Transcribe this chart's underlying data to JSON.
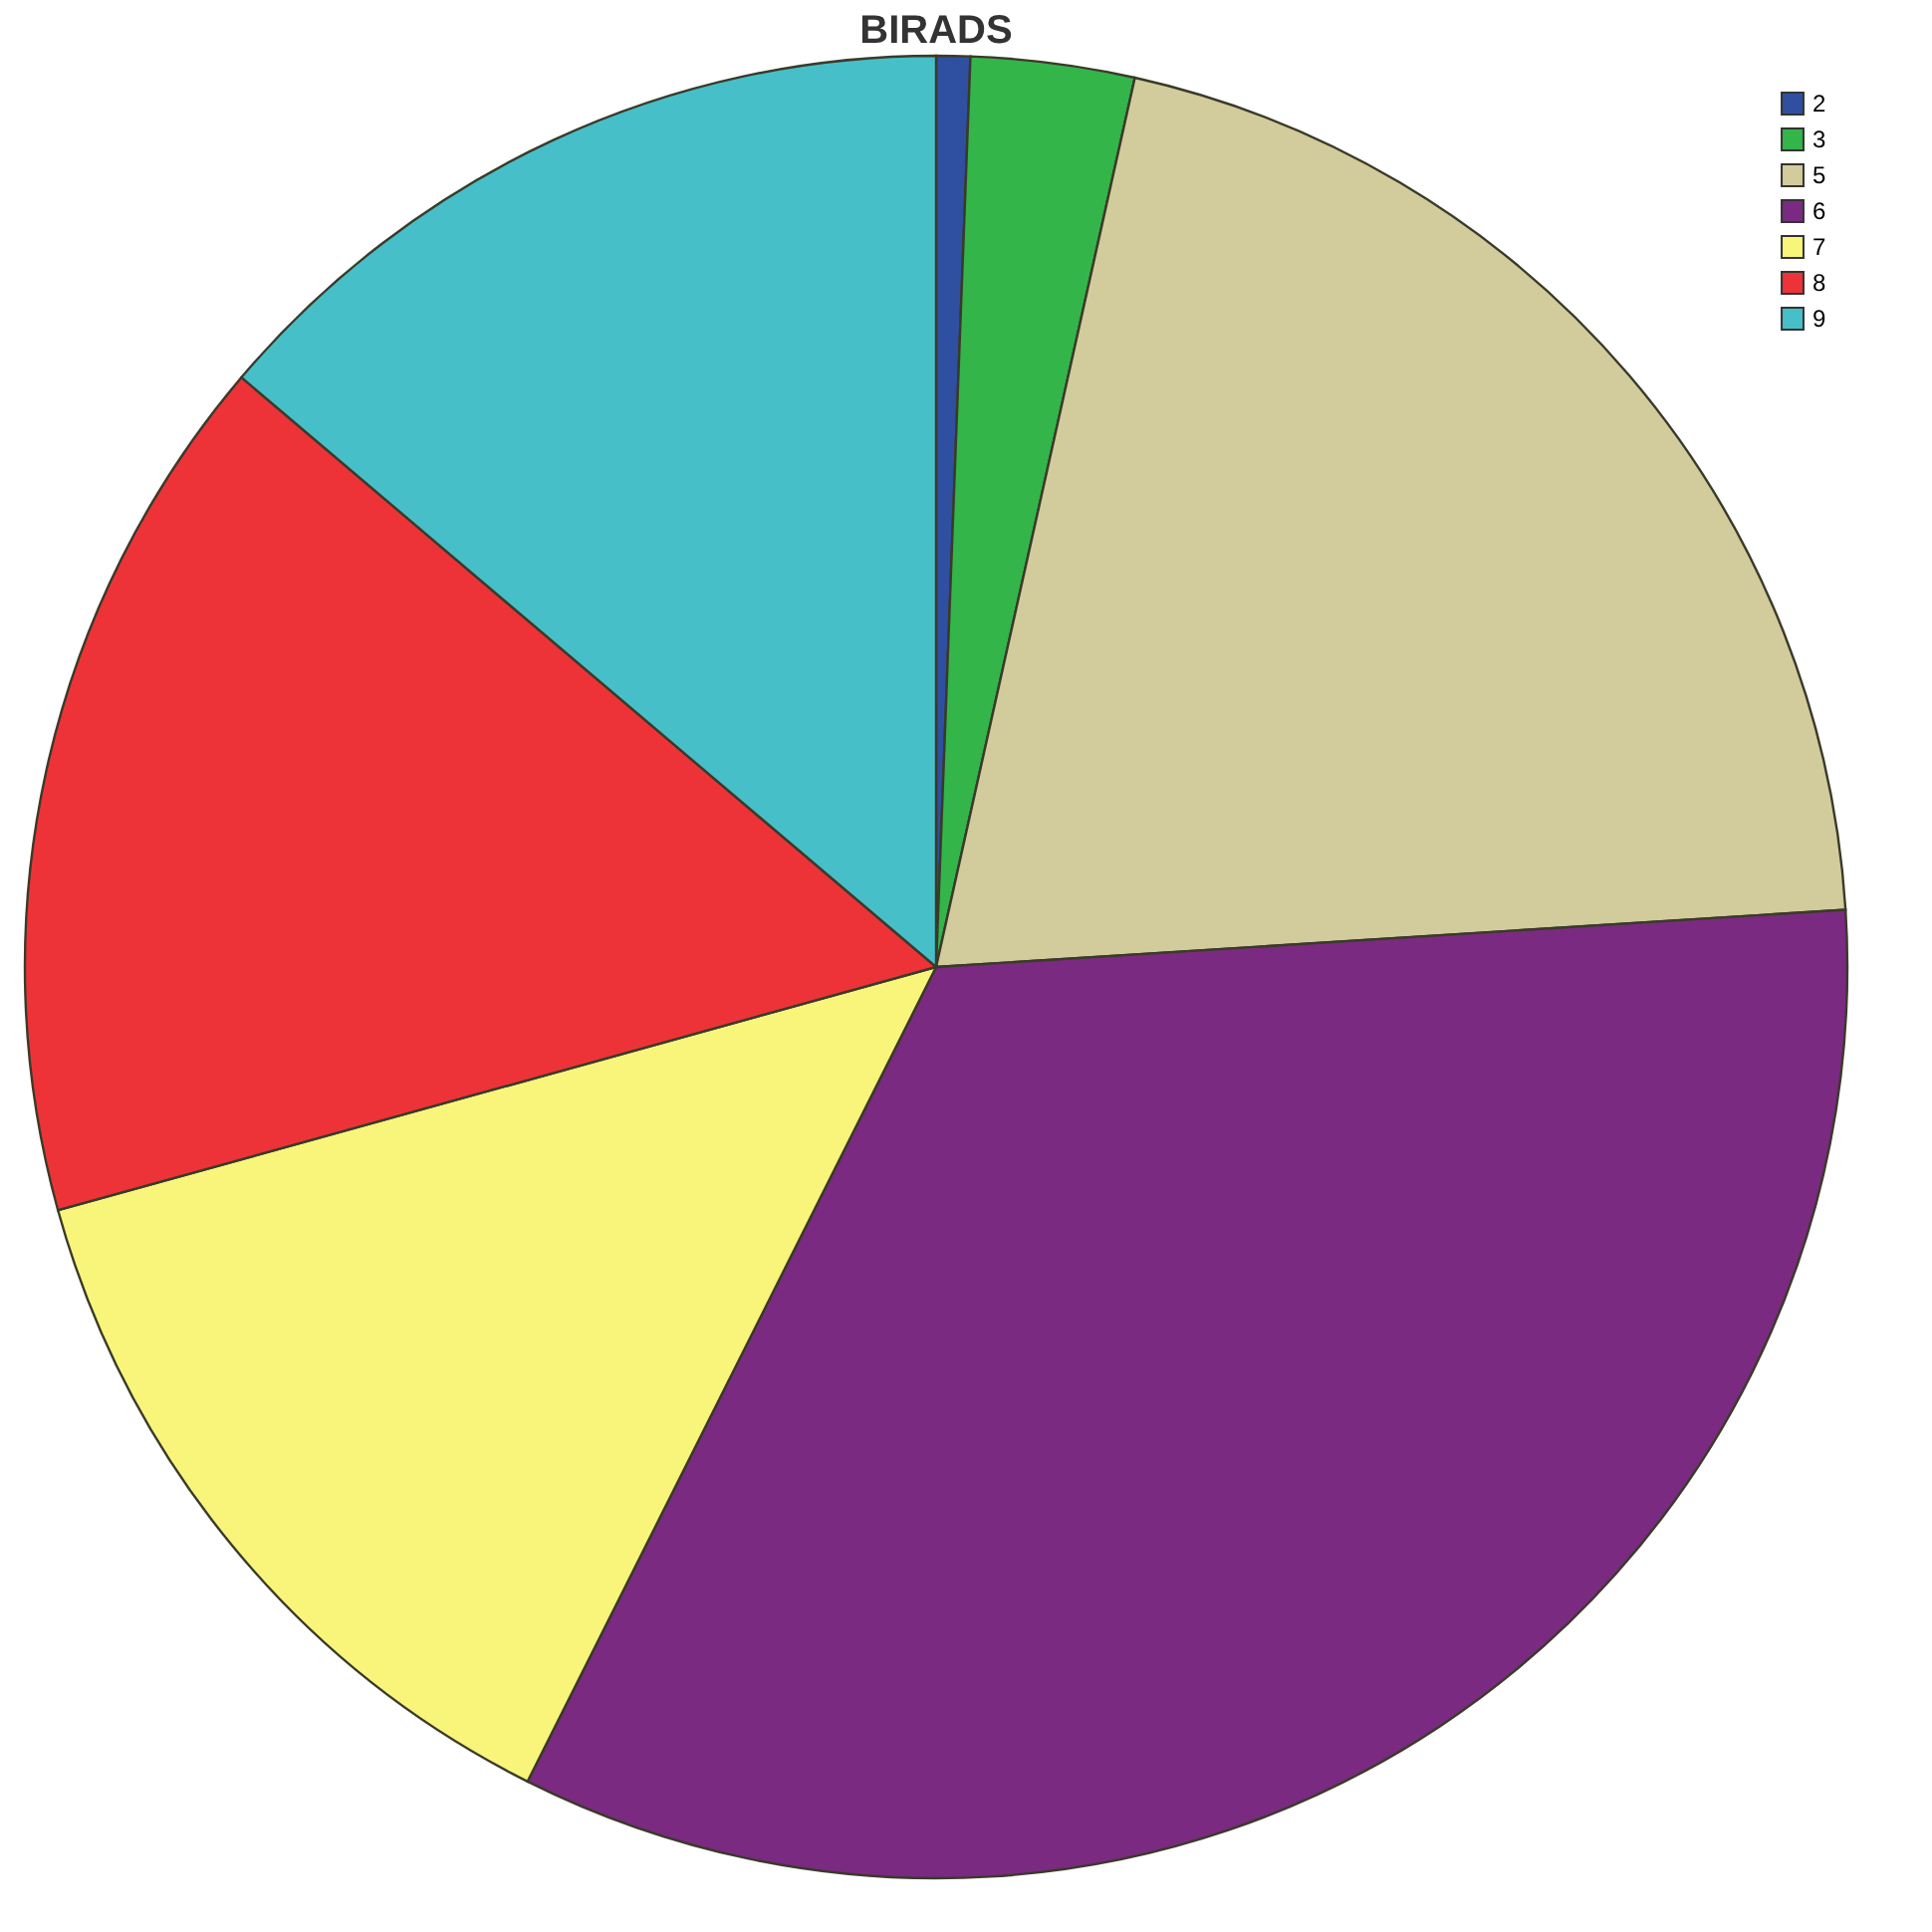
{
  "chart_data": {
    "type": "pie",
    "title": "BIRADS",
    "categories": [
      "2",
      "3",
      "5",
      "6",
      "7",
      "8",
      "9"
    ],
    "values": [
      0.6,
      2.9,
      20.5,
      33.4,
      13.3,
      15.5,
      13.8
    ],
    "colors": [
      "#2f4fa0",
      "#33b54a",
      "#d2cc9c",
      "#7a2a80",
      "#f8f57a",
      "#ee3338",
      "#46bfc8"
    ],
    "legend": "top right"
  }
}
